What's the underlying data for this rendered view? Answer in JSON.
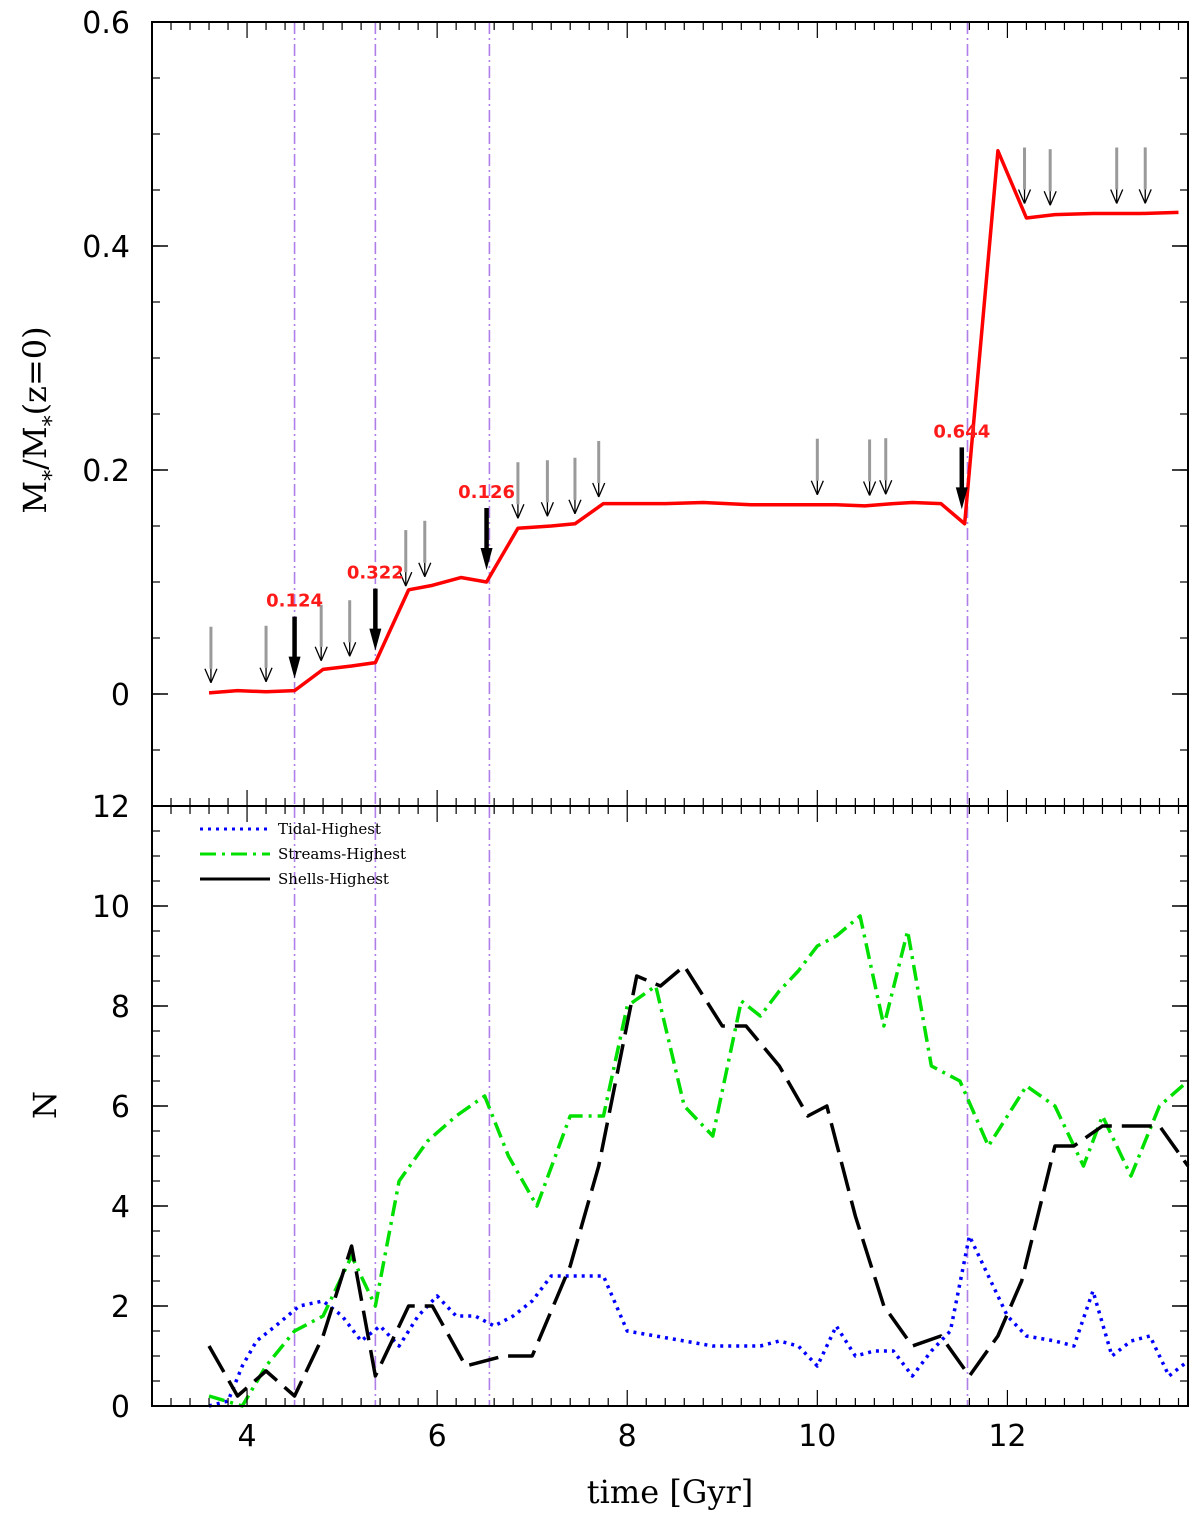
{
  "chart_data": [
    {
      "type": "line",
      "panel": "top",
      "xlabel": "time [Gyr]",
      "ylabel": "M*/M*(z=0)",
      "xlim": [
        3,
        13.9
      ],
      "ylim": [
        -0.1,
        0.6
      ],
      "yticks": [
        0,
        0.2,
        0.4,
        0.6
      ],
      "ytick_labels": [
        "0",
        "0.2",
        "0.4",
        "0.6"
      ],
      "colors": {
        "mass": "#ff0000",
        "vline": "#b07ee8",
        "arrow_major": "#000000",
        "arrow_minor": "#9a9a9a"
      },
      "series": [
        {
          "x": [
            3.6,
            3.9,
            4.2,
            4.5,
            4.8,
            5.1,
            5.35,
            5.7,
            5.95,
            6.25,
            6.52,
            6.85,
            7.2,
            7.45,
            7.75,
            8.4,
            8.8,
            9.3,
            9.7,
            10.2,
            10.5,
            10.8,
            11.0,
            11.3,
            11.55,
            11.9,
            12.2,
            12.5,
            12.9,
            13.4,
            13.8
          ],
          "y": [
            0.001,
            0.003,
            0.002,
            0.003,
            0.022,
            0.025,
            0.028,
            0.093,
            0.097,
            0.104,
            0.1,
            0.148,
            0.15,
            0.152,
            0.17,
            0.17,
            0.171,
            0.169,
            0.169,
            0.169,
            0.168,
            0.17,
            0.171,
            0.17,
            0.152,
            0.485,
            0.425,
            0.428,
            0.429,
            0.429,
            0.43
          ]
        }
      ],
      "vlines": [
        4.5,
        5.35,
        6.55,
        11.58
      ],
      "major_arrows": [
        {
          "x": 4.5,
          "label": "0.124"
        },
        {
          "x": 5.35,
          "label": "0.322"
        },
        {
          "x": 6.52,
          "label": "0.126"
        },
        {
          "x": 11.52,
          "label": "0.644"
        }
      ],
      "minor_arrows_x": [
        3.62,
        4.2,
        4.78,
        5.08,
        5.67,
        5.87,
        6.85,
        7.16,
        7.45,
        7.7,
        10.0,
        10.55,
        10.72,
        12.18,
        12.45,
        13.15,
        13.45
      ]
    },
    {
      "type": "line",
      "panel": "bottom",
      "xlabel": "time [Gyr]",
      "ylabel": "N",
      "xlim": [
        3,
        13.9
      ],
      "ylim": [
        0,
        12
      ],
      "xticks": [
        4,
        6,
        8,
        10,
        12
      ],
      "xtick_labels": [
        "4",
        "6",
        "8",
        "10",
        "12"
      ],
      "yticks": [
        0,
        2,
        4,
        6,
        8,
        10,
        12
      ],
      "ytick_labels": [
        "0",
        "2",
        "4",
        "6",
        "8",
        "10",
        "12"
      ],
      "legend": "top-left",
      "series": [
        {
          "name": "Tidal-Highest",
          "color": "#0000ff",
          "x": [
            3.6,
            3.8,
            3.95,
            4.1,
            4.3,
            4.55,
            4.8,
            5.0,
            5.2,
            5.4,
            5.6,
            5.8,
            6.0,
            6.2,
            6.4,
            6.6,
            6.8,
            7.0,
            7.2,
            7.45,
            7.75,
            8.0,
            8.3,
            8.6,
            8.9,
            9.2,
            9.4,
            9.6,
            9.8,
            10.0,
            10.2,
            10.4,
            10.6,
            10.8,
            11.0,
            11.2,
            11.4,
            11.6,
            11.8,
            12.0,
            12.2,
            12.5,
            12.7,
            12.9,
            13.1,
            13.3,
            13.5,
            13.7,
            13.9
          ],
          "y": [
            0,
            0.1,
            0.8,
            1.3,
            1.6,
            2.0,
            2.1,
            1.8,
            1.3,
            1.6,
            1.2,
            1.8,
            2.2,
            1.8,
            1.8,
            1.6,
            1.8,
            2.1,
            2.6,
            2.6,
            2.6,
            1.5,
            1.4,
            1.3,
            1.2,
            1.2,
            1.2,
            1.3,
            1.2,
            0.8,
            1.6,
            1.0,
            1.1,
            1.1,
            0.6,
            1.1,
            1.5,
            3.4,
            2.6,
            1.8,
            1.4,
            1.3,
            1.2,
            2.3,
            1.0,
            1.3,
            1.4,
            0.6,
            0.9
          ]
        },
        {
          "name": "Streams-Highest",
          "color": "#00e000",
          "x": [
            3.6,
            3.95,
            4.2,
            4.5,
            4.8,
            5.1,
            5.35,
            5.6,
            5.9,
            6.2,
            6.5,
            6.75,
            7.05,
            7.4,
            7.75,
            8.0,
            8.3,
            8.6,
            8.9,
            9.2,
            9.4,
            9.6,
            9.8,
            10.0,
            10.2,
            10.45,
            10.7,
            10.95,
            11.2,
            11.5,
            11.8,
            12.0,
            12.2,
            12.5,
            12.8,
            13.0,
            13.3,
            13.6,
            13.9
          ],
          "y": [
            0.2,
            0,
            0.8,
            1.5,
            1.8,
            3.0,
            2.0,
            4.5,
            5.3,
            5.8,
            6.2,
            5.0,
            4.0,
            5.8,
            5.8,
            8.0,
            8.4,
            6.0,
            5.4,
            8.1,
            7.8,
            8.3,
            8.7,
            9.2,
            9.4,
            9.8,
            7.6,
            9.5,
            6.8,
            6.5,
            5.2,
            5.8,
            6.4,
            6.0,
            4.8,
            5.8,
            4.6,
            6.0,
            6.5
          ]
        },
        {
          "name": "Shells-Highest",
          "color": "#000000",
          "x": [
            3.6,
            3.9,
            4.2,
            4.5,
            4.8,
            5.1,
            5.35,
            5.7,
            5.95,
            6.3,
            6.7,
            7.0,
            7.4,
            7.7,
            8.1,
            8.35,
            8.6,
            9.0,
            9.25,
            9.6,
            9.9,
            10.1,
            10.4,
            10.7,
            11.0,
            11.3,
            11.6,
            11.9,
            12.15,
            12.5,
            12.7,
            13.0,
            13.3,
            13.6,
            13.9
          ],
          "y": [
            1.2,
            0.2,
            0.7,
            0.2,
            1.4,
            3.2,
            0.6,
            2.0,
            2.0,
            0.8,
            1.0,
            1.0,
            2.8,
            4.8,
            8.6,
            8.4,
            8.8,
            7.6,
            7.6,
            6.8,
            5.8,
            6.0,
            3.8,
            2.0,
            1.2,
            1.4,
            0.6,
            1.4,
            2.5,
            5.2,
            5.2,
            5.6,
            5.6,
            5.6,
            4.8
          ]
        }
      ]
    }
  ]
}
